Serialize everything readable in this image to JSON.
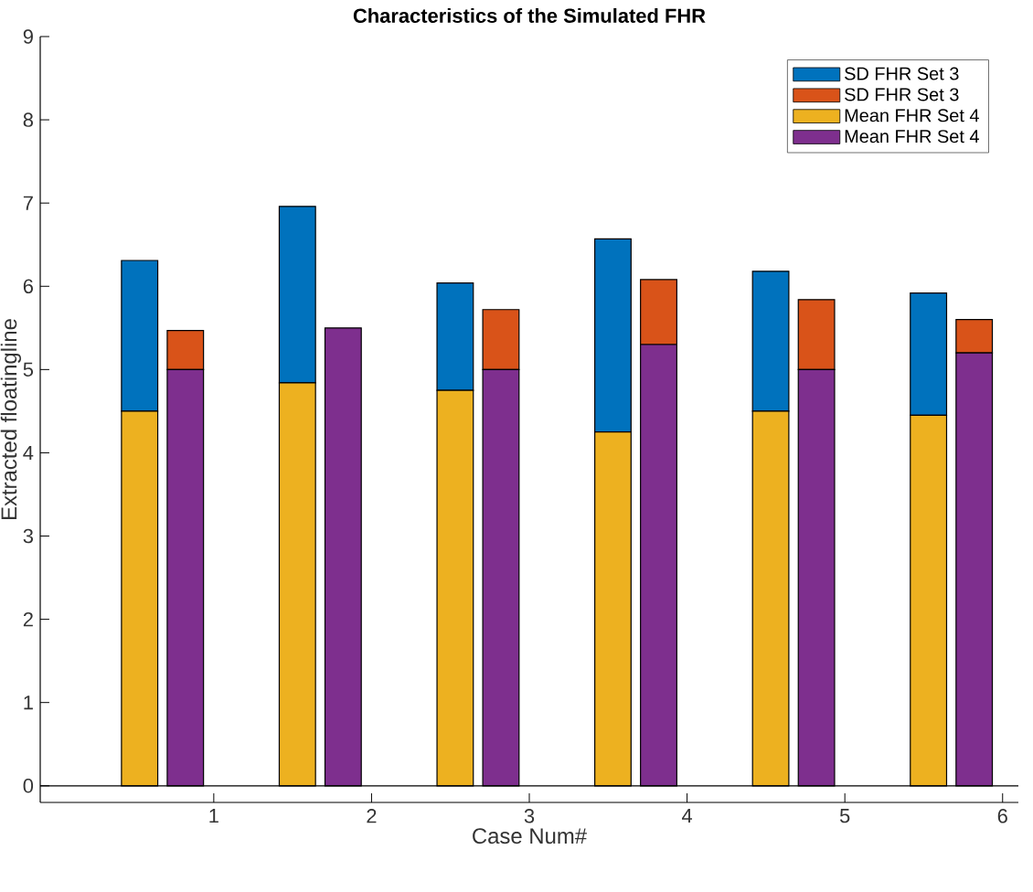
{
  "chart_data": {
    "type": "bar",
    "title": "Characteristics of the Simulated FHR",
    "xlabel": "Case Num#",
    "ylabel": "Extracted floatingline",
    "series": [
      {
        "name": "SD FHR Set 3",
        "color": "#0072bd",
        "x": [
          0.53,
          1.53,
          2.53,
          3.53,
          4.53,
          5.53
        ],
        "base": [
          4.5,
          4.84,
          4.75,
          4.25,
          4.5,
          4.45
        ],
        "values": [
          1.81,
          2.12,
          1.29,
          2.32,
          1.68,
          1.47
        ]
      },
      {
        "name": "SD FHR Set 3",
        "color": "#d95319",
        "x": [
          0.82,
          1.82,
          2.82,
          3.82,
          4.82,
          5.82
        ],
        "base": [
          5.0,
          null,
          5.0,
          5.3,
          5.0,
          5.2
        ],
        "values": [
          0.47,
          null,
          0.72,
          0.78,
          0.84,
          0.4
        ]
      },
      {
        "name": "Mean FHR Set 4",
        "color": "#edb120",
        "x": [
          0.53,
          1.53,
          2.53,
          3.53,
          4.53,
          5.53
        ],
        "values": [
          4.5,
          4.84,
          4.75,
          4.25,
          4.5,
          4.45
        ]
      },
      {
        "name": "Mean FHR Set 4",
        "color": "#7e2f8e",
        "x": [
          0.82,
          1.82,
          2.82,
          3.82,
          4.82,
          5.82
        ],
        "values": [
          5.0,
          5.5,
          5.0,
          5.3,
          5.0,
          5.2
        ]
      }
    ],
    "xlim": [
      -0.1,
      6.1
    ],
    "xticks": [
      1,
      2,
      3,
      4,
      5,
      6
    ],
    "ylim": [
      -0.2,
      9
    ],
    "yticks": [
      0,
      1,
      2,
      3,
      4,
      5,
      6,
      7,
      8,
      9
    ],
    "ref_lines": [
      {
        "axis": "y",
        "value": 0
      }
    ],
    "legend": "top right"
  }
}
